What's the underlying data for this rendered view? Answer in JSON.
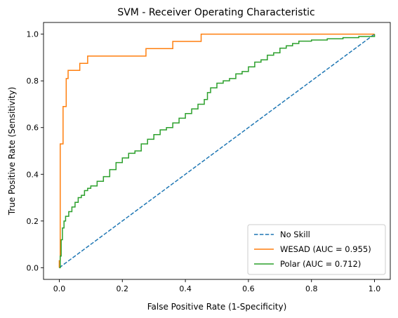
{
  "chart_data": {
    "type": "line",
    "title": "SVM - Receiver Operating Characteristic",
    "xlabel": "False Positive Rate (1-Specificity)",
    "ylabel": "True Positive Rate (Sensitivity)",
    "xlim": [
      -0.05,
      1.05
    ],
    "ylim": [
      -0.05,
      1.05
    ],
    "xticks": [
      "0.0",
      "0.2",
      "0.4",
      "0.6",
      "0.8",
      "1.0"
    ],
    "yticks": [
      "0.0",
      "0.2",
      "0.4",
      "0.6",
      "0.8",
      "1.0"
    ],
    "legend_position": "lower-right",
    "grid": false,
    "series": [
      {
        "name": "No Skill",
        "color": "#1f77b4",
        "style": "dashed",
        "x": [
          0,
          1
        ],
        "y": [
          0,
          1
        ]
      },
      {
        "name": "WESAD (AUC = 0.955)",
        "color": "#ff7f0e",
        "style": "solid",
        "step": true,
        "x": [
          0,
          0,
          0.003,
          0.003,
          0.012,
          0.012,
          0.022,
          0.022,
          0.028,
          0.028,
          0.048,
          0.048,
          0.065,
          0.065,
          0.09,
          0.09,
          0.275,
          0.275,
          0.36,
          0.36,
          0.45,
          0.45,
          1.0
        ],
        "y": [
          0,
          0.03,
          0.03,
          0.53,
          0.53,
          0.69,
          0.69,
          0.81,
          0.81,
          0.845,
          0.845,
          0.845,
          0.845,
          0.875,
          0.875,
          0.906,
          0.906,
          0.938,
          0.938,
          0.969,
          0.969,
          1.0,
          1.0
        ]
      },
      {
        "name": "Polar (AUC = 0.712)",
        "color": "#2ca02c",
        "style": "solid",
        "step": true,
        "x": [
          0,
          0.003,
          0.006,
          0.01,
          0.015,
          0.02,
          0.03,
          0.04,
          0.05,
          0.06,
          0.07,
          0.08,
          0.09,
          0.1,
          0.12,
          0.14,
          0.16,
          0.18,
          0.2,
          0.22,
          0.24,
          0.26,
          0.28,
          0.3,
          0.32,
          0.34,
          0.36,
          0.38,
          0.4,
          0.42,
          0.44,
          0.46,
          0.47,
          0.48,
          0.5,
          0.52,
          0.54,
          0.56,
          0.58,
          0.6,
          0.62,
          0.64,
          0.66,
          0.68,
          0.7,
          0.72,
          0.74,
          0.76,
          0.8,
          0.85,
          0.9,
          0.95,
          1.0
        ],
        "y": [
          0,
          0.05,
          0.12,
          0.17,
          0.2,
          0.22,
          0.24,
          0.26,
          0.28,
          0.3,
          0.31,
          0.33,
          0.34,
          0.35,
          0.37,
          0.39,
          0.42,
          0.45,
          0.47,
          0.49,
          0.5,
          0.53,
          0.55,
          0.57,
          0.59,
          0.6,
          0.62,
          0.64,
          0.66,
          0.68,
          0.7,
          0.72,
          0.75,
          0.77,
          0.79,
          0.8,
          0.81,
          0.83,
          0.84,
          0.86,
          0.88,
          0.89,
          0.91,
          0.92,
          0.94,
          0.95,
          0.96,
          0.97,
          0.975,
          0.98,
          0.985,
          0.99,
          1.0
        ]
      }
    ]
  }
}
